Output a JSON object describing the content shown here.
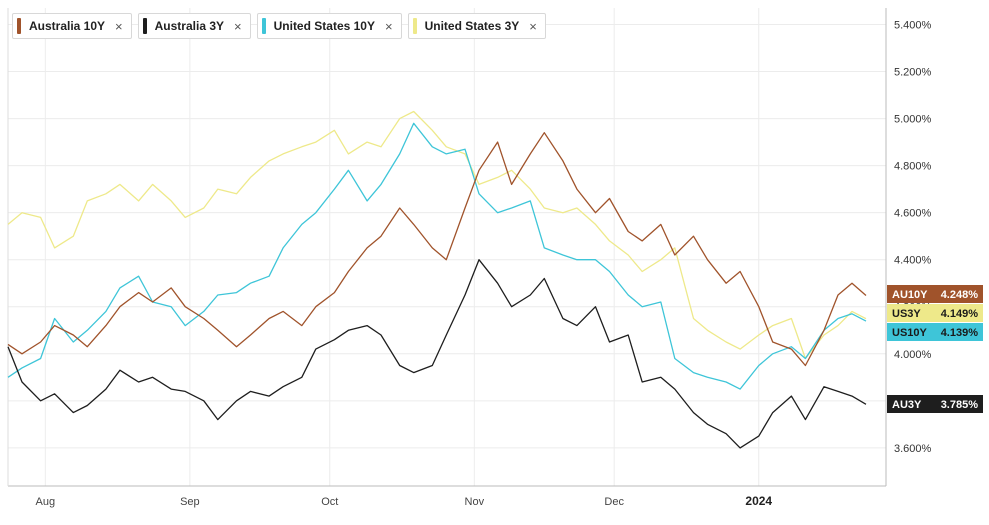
{
  "legend": [
    {
      "name": "Australia 10Y",
      "color": "#a0532b"
    },
    {
      "name": "Australia 3Y",
      "color": "#1e1e1e"
    },
    {
      "name": "United States 10Y",
      "color": "#3ec5d8"
    },
    {
      "name": "United States 3Y",
      "color": "#eee98a"
    }
  ],
  "legend_close_icon": "×",
  "chart_data": {
    "type": "line",
    "ylim": [
      3.4,
      5.5
    ],
    "yticks": [
      "5.400%",
      "5.200%",
      "5.000%",
      "4.800%",
      "4.600%",
      "4.400%",
      "4.200%",
      "4.000%",
      "3.800%",
      "3.600%"
    ],
    "ytick_values": [
      5.4,
      5.2,
      5.0,
      4.8,
      4.6,
      4.4,
      4.2,
      4.0,
      3.8,
      3.6
    ],
    "x_range": [
      "2023-07-24",
      "2024-01-24"
    ],
    "xticks": [
      {
        "date": "2023-08-01",
        "label": "Aug",
        "bold": false
      },
      {
        "date": "2023-09-01",
        "label": "Sep",
        "bold": false
      },
      {
        "date": "2023-10-01",
        "label": "Oct",
        "bold": false
      },
      {
        "date": "2023-11-01",
        "label": "Nov",
        "bold": false
      },
      {
        "date": "2023-12-01",
        "label": "Dec",
        "bold": false
      },
      {
        "date": "2024-01-01",
        "label": "2024",
        "bold": true
      }
    ],
    "series": [
      {
        "name": "Australia 10Y",
        "tag": "AU10Y",
        "last_label": "4.248%",
        "last": 4.248,
        "color": "#a0532b",
        "points": [
          [
            "2023-07-24",
            4.04
          ],
          [
            "2023-07-27",
            4.0
          ],
          [
            "2023-07-31",
            4.05
          ],
          [
            "2023-08-03",
            4.12
          ],
          [
            "2023-08-07",
            4.08
          ],
          [
            "2023-08-10",
            4.03
          ],
          [
            "2023-08-14",
            4.12
          ],
          [
            "2023-08-17",
            4.2
          ],
          [
            "2023-08-21",
            4.26
          ],
          [
            "2023-08-24",
            4.22
          ],
          [
            "2023-08-28",
            4.28
          ],
          [
            "2023-08-31",
            4.2
          ],
          [
            "2023-09-04",
            4.15
          ],
          [
            "2023-09-07",
            4.1
          ],
          [
            "2023-09-11",
            4.03
          ],
          [
            "2023-09-14",
            4.08
          ],
          [
            "2023-09-18",
            4.15
          ],
          [
            "2023-09-21",
            4.18
          ],
          [
            "2023-09-25",
            4.12
          ],
          [
            "2023-09-28",
            4.2
          ],
          [
            "2023-10-02",
            4.26
          ],
          [
            "2023-10-05",
            4.35
          ],
          [
            "2023-10-09",
            4.45
          ],
          [
            "2023-10-12",
            4.5
          ],
          [
            "2023-10-16",
            4.62
          ],
          [
            "2023-10-19",
            4.55
          ],
          [
            "2023-10-23",
            4.45
          ],
          [
            "2023-10-26",
            4.4
          ],
          [
            "2023-10-30",
            4.62
          ],
          [
            "2023-11-02",
            4.78
          ],
          [
            "2023-11-06",
            4.9
          ],
          [
            "2023-11-09",
            4.72
          ],
          [
            "2023-11-13",
            4.85
          ],
          [
            "2023-11-16",
            4.94
          ],
          [
            "2023-11-20",
            4.82
          ],
          [
            "2023-11-23",
            4.7
          ],
          [
            "2023-11-27",
            4.6
          ],
          [
            "2023-11-30",
            4.66
          ],
          [
            "2023-12-04",
            4.52
          ],
          [
            "2023-12-07",
            4.48
          ],
          [
            "2023-12-11",
            4.55
          ],
          [
            "2023-12-14",
            4.42
          ],
          [
            "2023-12-18",
            4.5
          ],
          [
            "2023-12-21",
            4.4
          ],
          [
            "2023-12-25",
            4.3
          ],
          [
            "2023-12-28",
            4.35
          ],
          [
            "2024-01-01",
            4.2
          ],
          [
            "2024-01-04",
            4.05
          ],
          [
            "2024-01-08",
            4.02
          ],
          [
            "2024-01-11",
            3.95
          ],
          [
            "2024-01-15",
            4.1
          ],
          [
            "2024-01-18",
            4.25
          ],
          [
            "2024-01-21",
            4.3
          ],
          [
            "2024-01-24",
            4.248
          ]
        ]
      },
      {
        "name": "Australia 3Y",
        "tag": "AU3Y",
        "last_label": "3.785%",
        "last": 3.785,
        "color": "#1e1e1e",
        "points": [
          [
            "2023-07-24",
            4.03
          ],
          [
            "2023-07-27",
            3.88
          ],
          [
            "2023-07-31",
            3.8
          ],
          [
            "2023-08-03",
            3.83
          ],
          [
            "2023-08-07",
            3.75
          ],
          [
            "2023-08-10",
            3.78
          ],
          [
            "2023-08-14",
            3.85
          ],
          [
            "2023-08-17",
            3.93
          ],
          [
            "2023-08-21",
            3.88
          ],
          [
            "2023-08-24",
            3.9
          ],
          [
            "2023-08-28",
            3.85
          ],
          [
            "2023-08-31",
            3.84
          ],
          [
            "2023-09-04",
            3.8
          ],
          [
            "2023-09-07",
            3.72
          ],
          [
            "2023-09-11",
            3.8
          ],
          [
            "2023-09-14",
            3.84
          ],
          [
            "2023-09-18",
            3.82
          ],
          [
            "2023-09-21",
            3.86
          ],
          [
            "2023-09-25",
            3.9
          ],
          [
            "2023-09-28",
            4.02
          ],
          [
            "2023-10-02",
            4.06
          ],
          [
            "2023-10-05",
            4.1
          ],
          [
            "2023-10-09",
            4.12
          ],
          [
            "2023-10-12",
            4.08
          ],
          [
            "2023-10-16",
            3.95
          ],
          [
            "2023-10-19",
            3.92
          ],
          [
            "2023-10-23",
            3.95
          ],
          [
            "2023-10-26",
            4.08
          ],
          [
            "2023-10-30",
            4.25
          ],
          [
            "2023-11-02",
            4.4
          ],
          [
            "2023-11-06",
            4.3
          ],
          [
            "2023-11-09",
            4.2
          ],
          [
            "2023-11-13",
            4.25
          ],
          [
            "2023-11-16",
            4.32
          ],
          [
            "2023-11-20",
            4.15
          ],
          [
            "2023-11-23",
            4.12
          ],
          [
            "2023-11-27",
            4.2
          ],
          [
            "2023-11-30",
            4.05
          ],
          [
            "2023-12-04",
            4.08
          ],
          [
            "2023-12-07",
            3.88
          ],
          [
            "2023-12-11",
            3.9
          ],
          [
            "2023-12-14",
            3.85
          ],
          [
            "2023-12-18",
            3.75
          ],
          [
            "2023-12-21",
            3.7
          ],
          [
            "2023-12-25",
            3.66
          ],
          [
            "2023-12-28",
            3.6
          ],
          [
            "2024-01-01",
            3.65
          ],
          [
            "2024-01-04",
            3.75
          ],
          [
            "2024-01-08",
            3.82
          ],
          [
            "2024-01-11",
            3.72
          ],
          [
            "2024-01-15",
            3.86
          ],
          [
            "2024-01-18",
            3.84
          ],
          [
            "2024-01-21",
            3.82
          ],
          [
            "2024-01-24",
            3.785
          ]
        ]
      },
      {
        "name": "United States 10Y",
        "tag": "US10Y",
        "last_label": "4.139%",
        "last": 4.139,
        "color": "#3ec5d8",
        "points": [
          [
            "2023-07-24",
            3.9
          ],
          [
            "2023-07-27",
            3.94
          ],
          [
            "2023-07-31",
            3.98
          ],
          [
            "2023-08-03",
            4.15
          ],
          [
            "2023-08-07",
            4.05
          ],
          [
            "2023-08-10",
            4.1
          ],
          [
            "2023-08-14",
            4.18
          ],
          [
            "2023-08-17",
            4.28
          ],
          [
            "2023-08-21",
            4.33
          ],
          [
            "2023-08-24",
            4.22
          ],
          [
            "2023-08-28",
            4.2
          ],
          [
            "2023-08-31",
            4.12
          ],
          [
            "2023-09-04",
            4.18
          ],
          [
            "2023-09-07",
            4.25
          ],
          [
            "2023-09-11",
            4.26
          ],
          [
            "2023-09-14",
            4.3
          ],
          [
            "2023-09-18",
            4.33
          ],
          [
            "2023-09-21",
            4.45
          ],
          [
            "2023-09-25",
            4.55
          ],
          [
            "2023-09-28",
            4.6
          ],
          [
            "2023-10-02",
            4.7
          ],
          [
            "2023-10-05",
            4.78
          ],
          [
            "2023-10-09",
            4.65
          ],
          [
            "2023-10-12",
            4.72
          ],
          [
            "2023-10-16",
            4.85
          ],
          [
            "2023-10-19",
            4.98
          ],
          [
            "2023-10-23",
            4.88
          ],
          [
            "2023-10-26",
            4.85
          ],
          [
            "2023-10-30",
            4.87
          ],
          [
            "2023-11-02",
            4.68
          ],
          [
            "2023-11-06",
            4.6
          ],
          [
            "2023-11-09",
            4.62
          ],
          [
            "2023-11-13",
            4.65
          ],
          [
            "2023-11-16",
            4.45
          ],
          [
            "2023-11-20",
            4.42
          ],
          [
            "2023-11-23",
            4.4
          ],
          [
            "2023-11-27",
            4.4
          ],
          [
            "2023-11-30",
            4.35
          ],
          [
            "2023-12-04",
            4.25
          ],
          [
            "2023-12-07",
            4.2
          ],
          [
            "2023-12-11",
            4.22
          ],
          [
            "2023-12-14",
            3.98
          ],
          [
            "2023-12-18",
            3.92
          ],
          [
            "2023-12-21",
            3.9
          ],
          [
            "2023-12-25",
            3.88
          ],
          [
            "2023-12-28",
            3.85
          ],
          [
            "2024-01-01",
            3.95
          ],
          [
            "2024-01-04",
            4.0
          ],
          [
            "2024-01-08",
            4.03
          ],
          [
            "2024-01-11",
            3.98
          ],
          [
            "2024-01-15",
            4.1
          ],
          [
            "2024-01-18",
            4.15
          ],
          [
            "2024-01-21",
            4.17
          ],
          [
            "2024-01-24",
            4.139
          ]
        ]
      },
      {
        "name": "United States 3Y",
        "tag": "US3Y",
        "last_label": "4.149%",
        "last": 4.149,
        "color": "#eee98a",
        "points": [
          [
            "2023-07-24",
            4.55
          ],
          [
            "2023-07-27",
            4.6
          ],
          [
            "2023-07-31",
            4.58
          ],
          [
            "2023-08-03",
            4.45
          ],
          [
            "2023-08-07",
            4.5
          ],
          [
            "2023-08-10",
            4.65
          ],
          [
            "2023-08-14",
            4.68
          ],
          [
            "2023-08-17",
            4.72
          ],
          [
            "2023-08-21",
            4.65
          ],
          [
            "2023-08-24",
            4.72
          ],
          [
            "2023-08-28",
            4.65
          ],
          [
            "2023-08-31",
            4.58
          ],
          [
            "2023-09-04",
            4.62
          ],
          [
            "2023-09-07",
            4.7
          ],
          [
            "2023-09-11",
            4.68
          ],
          [
            "2023-09-14",
            4.75
          ],
          [
            "2023-09-18",
            4.82
          ],
          [
            "2023-09-21",
            4.85
          ],
          [
            "2023-09-25",
            4.88
          ],
          [
            "2023-09-28",
            4.9
          ],
          [
            "2023-10-02",
            4.95
          ],
          [
            "2023-10-05",
            4.85
          ],
          [
            "2023-10-09",
            4.9
          ],
          [
            "2023-10-12",
            4.88
          ],
          [
            "2023-10-16",
            5.0
          ],
          [
            "2023-10-19",
            5.03
          ],
          [
            "2023-10-23",
            4.95
          ],
          [
            "2023-10-26",
            4.88
          ],
          [
            "2023-10-30",
            4.85
          ],
          [
            "2023-11-02",
            4.72
          ],
          [
            "2023-11-06",
            4.75
          ],
          [
            "2023-11-09",
            4.78
          ],
          [
            "2023-11-13",
            4.7
          ],
          [
            "2023-11-16",
            4.62
          ],
          [
            "2023-11-20",
            4.6
          ],
          [
            "2023-11-23",
            4.62
          ],
          [
            "2023-11-27",
            4.55
          ],
          [
            "2023-11-30",
            4.48
          ],
          [
            "2023-12-04",
            4.42
          ],
          [
            "2023-12-07",
            4.35
          ],
          [
            "2023-12-11",
            4.4
          ],
          [
            "2023-12-14",
            4.45
          ],
          [
            "2023-12-18",
            4.15
          ],
          [
            "2023-12-21",
            4.1
          ],
          [
            "2023-12-25",
            4.05
          ],
          [
            "2023-12-28",
            4.02
          ],
          [
            "2024-01-01",
            4.08
          ],
          [
            "2024-01-04",
            4.12
          ],
          [
            "2024-01-08",
            4.15
          ],
          [
            "2024-01-11",
            3.98
          ],
          [
            "2024-01-15",
            4.08
          ],
          [
            "2024-01-18",
            4.12
          ],
          [
            "2024-01-21",
            4.18
          ],
          [
            "2024-01-24",
            4.149
          ]
        ]
      }
    ],
    "grid": true
  }
}
